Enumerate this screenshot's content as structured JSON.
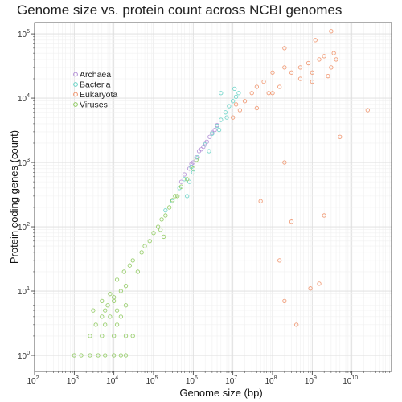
{
  "chart_data": {
    "type": "scatter",
    "title": "Genome size vs. protein count across NCBI genomes",
    "xlabel": "Genome size (bp)",
    "ylabel": "Protein coding genes (count)",
    "x_scale": "log",
    "y_scale": "log",
    "xlim": [
      100,
      100000000000
    ],
    "ylim": [
      1,
      150000
    ],
    "x_tick_labels": [
      "10^2",
      "10^3",
      "10^4",
      "10^5",
      "10^6",
      "10^7",
      "10^8",
      "10^9",
      "10^10"
    ],
    "y_tick_labels": [
      "10^0",
      "10^1",
      "10^2",
      "10^3",
      "10^4",
      "10^5"
    ],
    "grid": true,
    "legend_position": "top-left",
    "series": [
      {
        "name": "Archaea",
        "color": "#b38fd6",
        "points": [
          [
            500000,
            500
          ],
          [
            800000,
            800
          ],
          [
            1200000,
            1200
          ],
          [
            1600000,
            1600
          ],
          [
            2000000,
            2000
          ],
          [
            2600000,
            2500
          ],
          [
            3000000,
            2900
          ],
          [
            4000000,
            3800
          ],
          [
            600000,
            650
          ],
          [
            1000000,
            1000
          ],
          [
            1400000,
            1500
          ],
          [
            2200000,
            2100
          ],
          [
            3500000,
            3200
          ],
          [
            900000,
            950
          ],
          [
            1800000,
            1750
          ]
        ]
      },
      {
        "name": "Bacteria",
        "color": "#68d3c6",
        "points": [
          [
            300000,
            250
          ],
          [
            450000,
            400
          ],
          [
            600000,
            550
          ],
          [
            900000,
            850
          ],
          [
            1300000,
            1200
          ],
          [
            2000000,
            1900
          ],
          [
            3000000,
            2800
          ],
          [
            4000000,
            3700
          ],
          [
            5000000,
            4600
          ],
          [
            6500000,
            6000
          ],
          [
            8000000,
            7500
          ],
          [
            10000000,
            9000
          ],
          [
            12000000,
            10500
          ],
          [
            14000000,
            12000
          ],
          [
            7000000,
            5000
          ],
          [
            2500000,
            1500
          ],
          [
            1000000,
            700
          ],
          [
            11000000,
            14000
          ],
          [
            4500000,
            3200
          ],
          [
            800000,
            500
          ],
          [
            200000,
            180
          ],
          [
            700000,
            300
          ],
          [
            5000000,
            12000
          ]
        ]
      },
      {
        "name": "Eukaryota",
        "color": "#f0936b",
        "points": [
          [
            10000000,
            5000
          ],
          [
            12000000,
            8000
          ],
          [
            15000000,
            6500
          ],
          [
            20000000,
            9000
          ],
          [
            30000000,
            12000
          ],
          [
            40000000,
            15000
          ],
          [
            60000000,
            18000
          ],
          [
            100000000,
            25000
          ],
          [
            150000000,
            15000
          ],
          [
            200000000,
            30000
          ],
          [
            300000000,
            25000
          ],
          [
            500000000,
            30000
          ],
          [
            800000000,
            35000
          ],
          [
            1000000000,
            25000
          ],
          [
            1500000000,
            40000
          ],
          [
            2000000000,
            45000
          ],
          [
            3000000000,
            30000
          ],
          [
            3500000000,
            50000
          ],
          [
            4000000000,
            40000
          ],
          [
            200000000,
            60000
          ],
          [
            1200000000,
            80000
          ],
          [
            3000000000,
            110000
          ],
          [
            1000000000,
            18000
          ],
          [
            100000000,
            12000
          ],
          [
            500000000,
            20000
          ],
          [
            25000000000,
            6500
          ],
          [
            50000000,
            250
          ],
          [
            300000000,
            120
          ],
          [
            2000000000,
            150
          ],
          [
            1500000000,
            13
          ],
          [
            900000000,
            11
          ],
          [
            200000000,
            7
          ],
          [
            400000000,
            3
          ],
          [
            150000000,
            30
          ],
          [
            200000000,
            1000
          ],
          [
            5000000000,
            2500
          ],
          [
            80000000,
            12000
          ],
          [
            2500000000,
            22000
          ],
          [
            40000000,
            7000
          ]
        ]
      },
      {
        "name": "Viruses",
        "color": "#8fca5f",
        "points": [
          [
            1500,
            1
          ],
          [
            2500,
            1
          ],
          [
            4000,
            1
          ],
          [
            6000,
            1
          ],
          [
            10000,
            1
          ],
          [
            15000,
            1
          ],
          [
            20000,
            1
          ],
          [
            2500,
            2
          ],
          [
            5000,
            2
          ],
          [
            10000,
            2
          ],
          [
            20000,
            2
          ],
          [
            3500,
            3
          ],
          [
            6000,
            3
          ],
          [
            12000,
            3
          ],
          [
            5000,
            4
          ],
          [
            8000,
            4
          ],
          [
            15000,
            4
          ],
          [
            3000,
            5
          ],
          [
            6000,
            5
          ],
          [
            12000,
            5
          ],
          [
            7000,
            6
          ],
          [
            10000,
            8
          ],
          [
            15000,
            10
          ],
          [
            10000,
            7
          ],
          [
            20000,
            12
          ],
          [
            25000,
            25
          ],
          [
            30000,
            30
          ],
          [
            50000,
            40
          ],
          [
            80000,
            60
          ],
          [
            100000,
            80
          ],
          [
            130000,
            100
          ],
          [
            160000,
            130
          ],
          [
            200000,
            150
          ],
          [
            250000,
            200
          ],
          [
            300000,
            260
          ],
          [
            350000,
            300
          ],
          [
            500000,
            420
          ],
          [
            700000,
            550
          ],
          [
            1000000,
            800
          ],
          [
            1200000,
            1100
          ],
          [
            40000,
            20
          ],
          [
            60000,
            50
          ],
          [
            150000,
            90
          ],
          [
            180000,
            70
          ],
          [
            400000,
            300
          ],
          [
            12000,
            15
          ],
          [
            18000,
            20
          ],
          [
            5000,
            7
          ],
          [
            8000,
            9
          ],
          [
            1000,
            1
          ],
          [
            30000,
            2
          ],
          [
            20000,
            6
          ]
        ]
      }
    ]
  }
}
